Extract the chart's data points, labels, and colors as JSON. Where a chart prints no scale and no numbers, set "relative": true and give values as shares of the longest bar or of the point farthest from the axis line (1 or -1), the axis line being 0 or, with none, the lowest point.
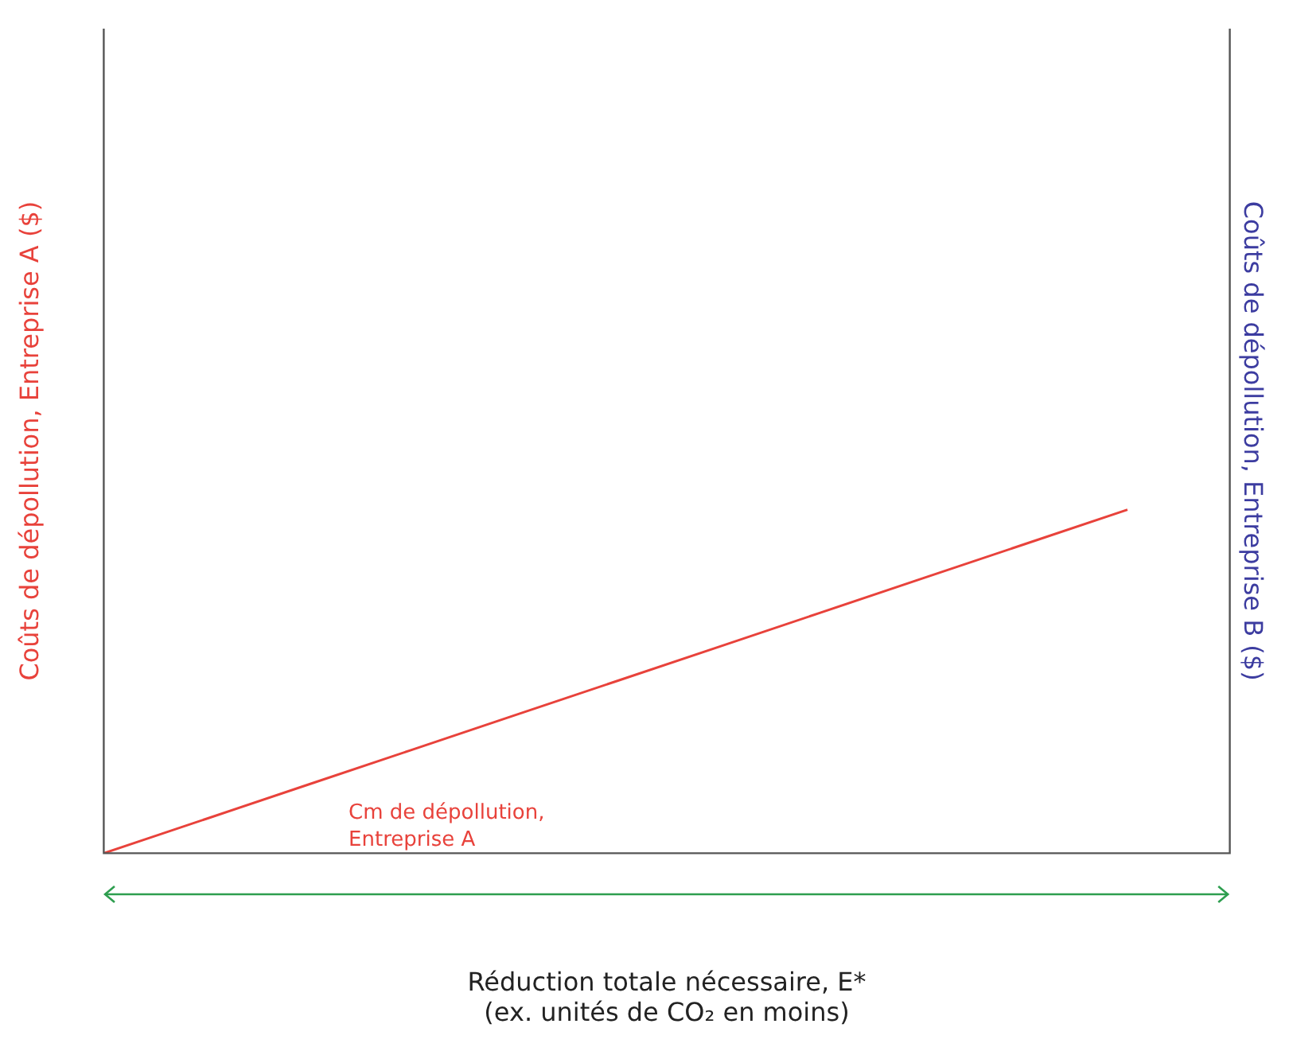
{
  "chart_data": {
    "type": "line",
    "relative": true,
    "ylabel": "Coûts de dépollution, Entreprise A ($)",
    "y2label": "Coûts de dépollution, Entreprise B ($)",
    "xlabel": "Réduction totale nécessaire, E*\n(ex. unités de CO₂ en moins)",
    "categories": [
      null,
      null,
      null,
      null,
      null,
      null,
      null,
      null,
      null,
      null,
      null,
      null
    ],
    "series": [
      {
        "name": "Cm de dépollution, Entreprise A",
        "color": "#e8423b",
        "values": [
          0,
          0.1,
          0.2,
          0.3,
          0.4,
          0.5,
          0.6,
          0.7,
          0.8,
          0.9,
          1.0,
          null
        ]
      }
    ],
    "grid": false,
    "legend": false,
    "marker": "none",
    "line_style": "solid"
  }
}
